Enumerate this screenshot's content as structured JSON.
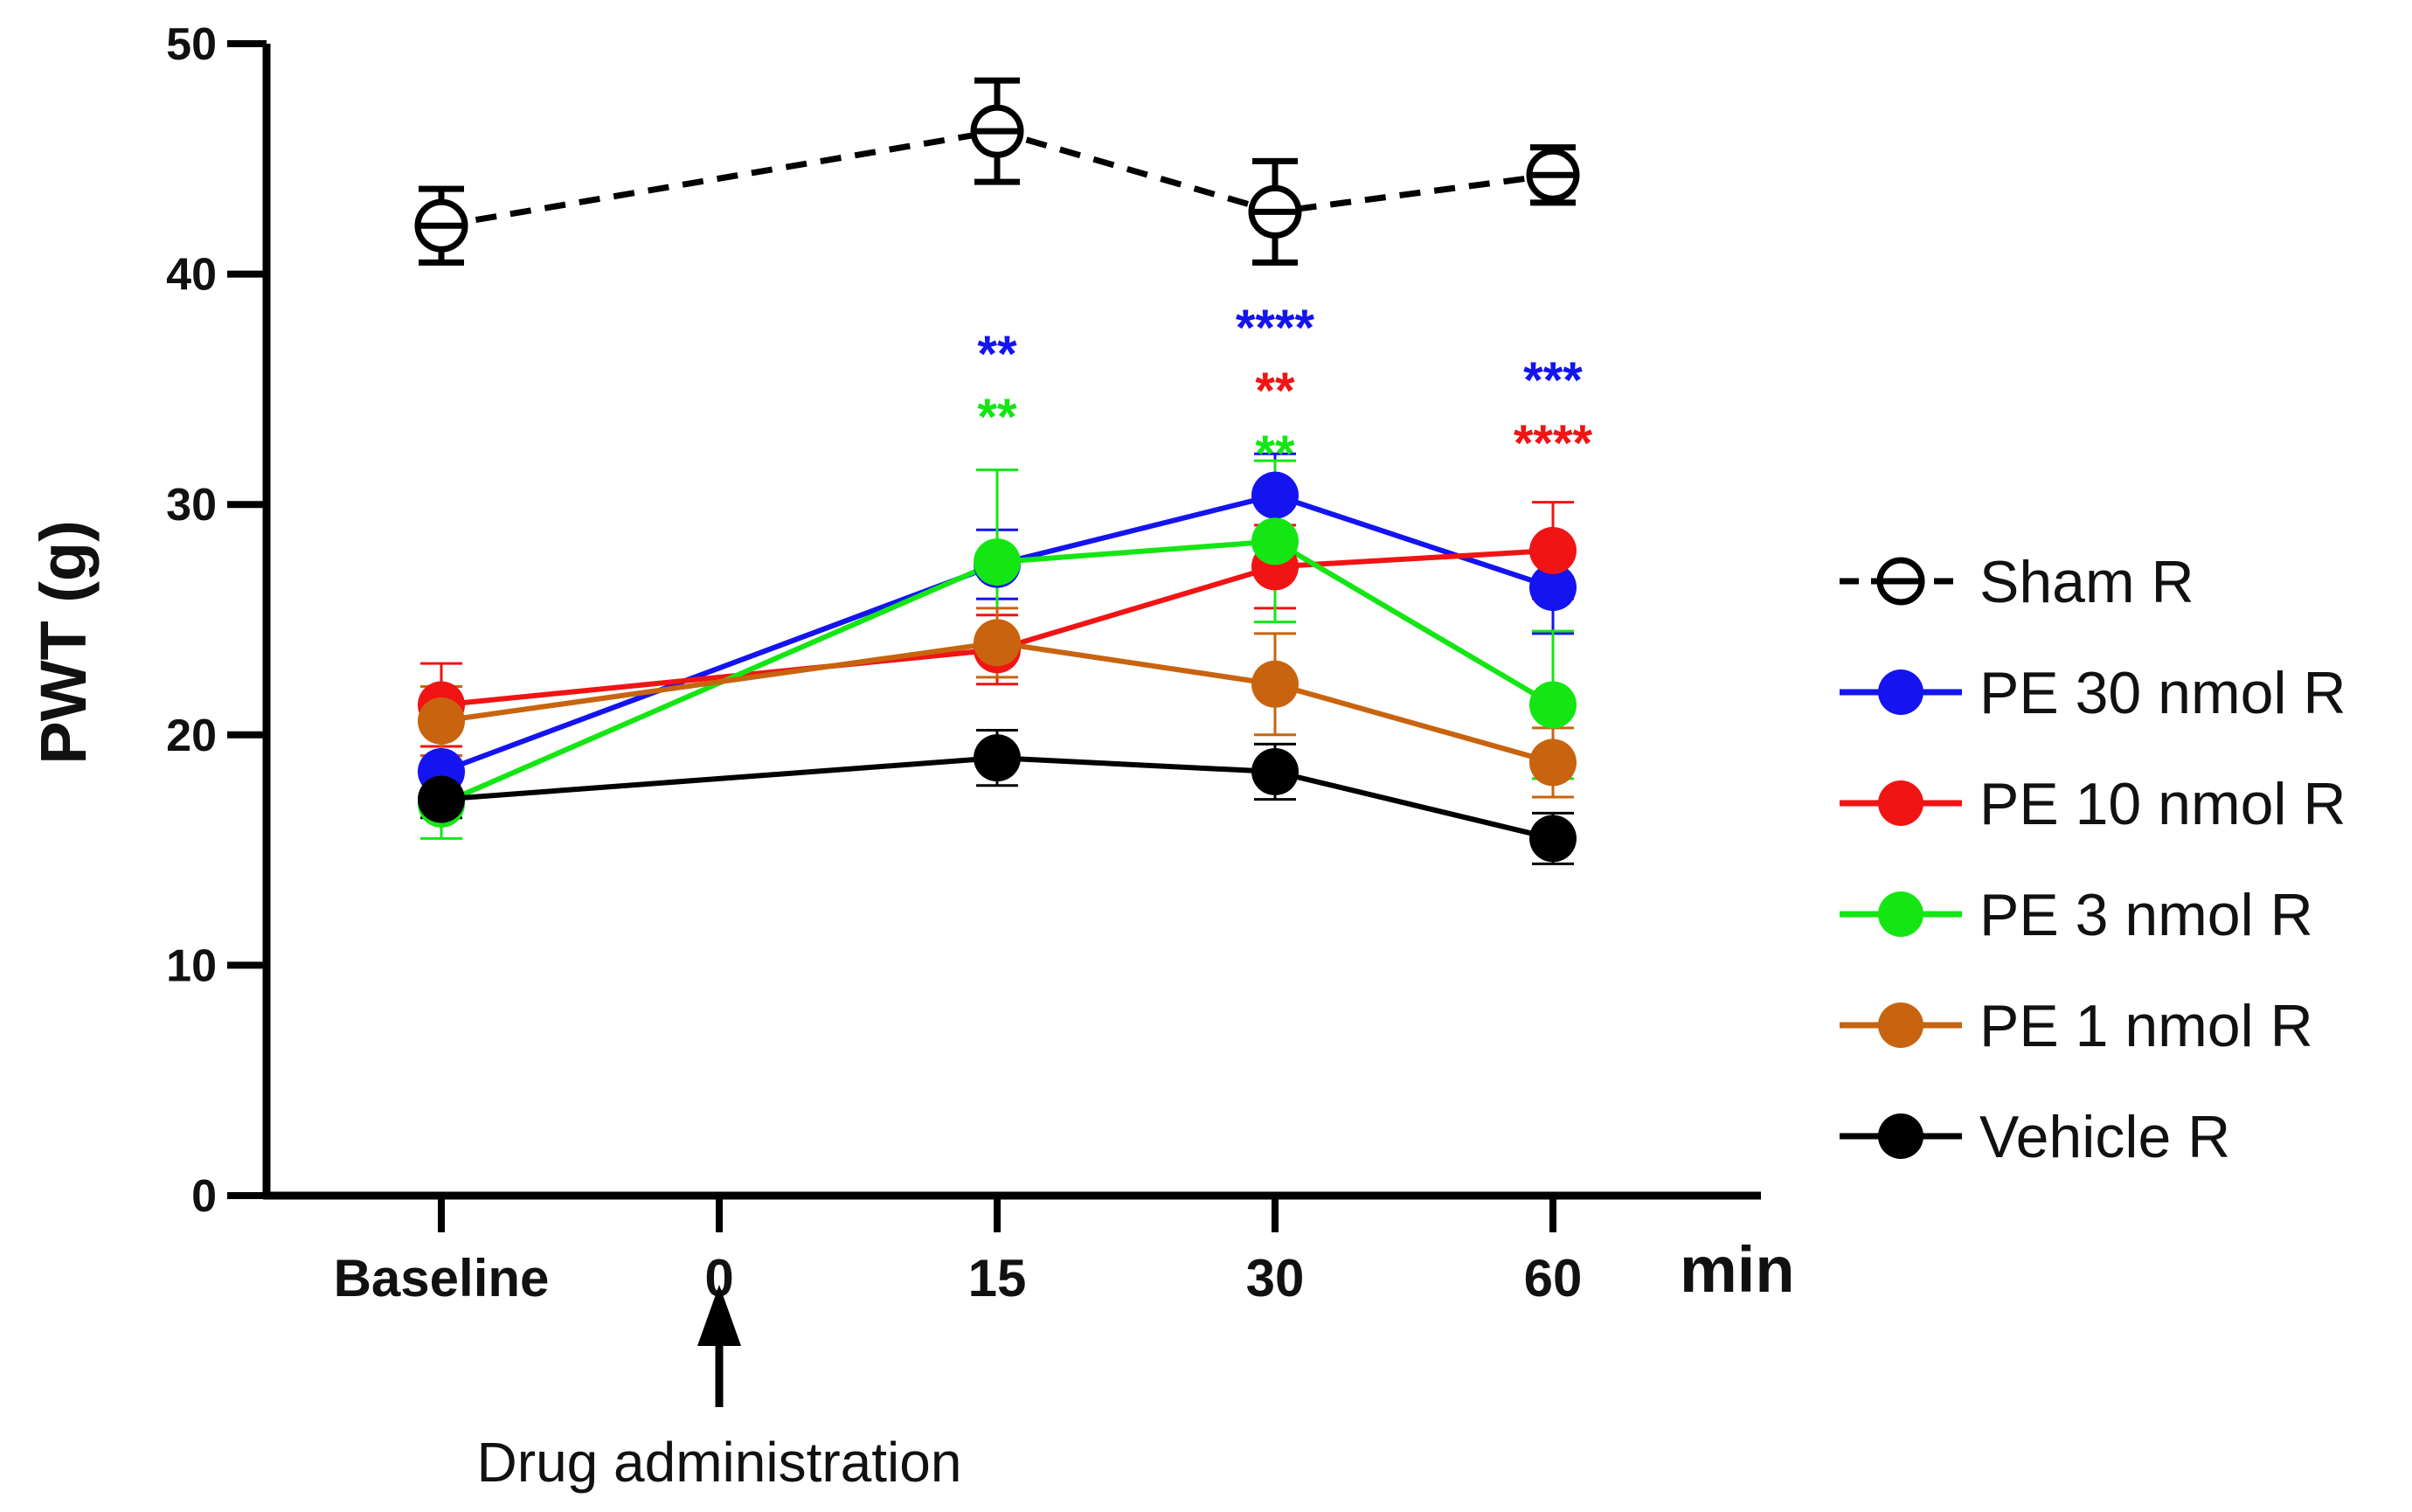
{
  "chart_data": {
    "type": "line",
    "title": "",
    "ylabel": "PWT (g)",
    "xlabel": "min",
    "categories": [
      "Baseline",
      "0",
      "15",
      "30",
      "60"
    ],
    "x_positions": [
      -1,
      0,
      1,
      2,
      3
    ],
    "ylim": [
      0,
      50
    ],
    "yticks": [
      0,
      10,
      20,
      30,
      40,
      50
    ],
    "annotation": "Drug administration",
    "legend_position": "right",
    "series": [
      {
        "name": "Sham R",
        "color": "#000000",
        "marker": "open-circle",
        "dashed": true,
        "x": [
          -1,
          1,
          2,
          3
        ],
        "values": [
          42.1,
          46.2,
          42.7,
          44.3
        ],
        "errors": [
          1.6,
          2.2,
          2.2,
          1.2
        ]
      },
      {
        "name": "PE 30 nmol R",
        "color": "#1414f0",
        "marker": "filled-circle",
        "dashed": false,
        "x": [
          -1,
          1,
          2,
          3
        ],
        "values": [
          18.4,
          27.4,
          30.4,
          26.4
        ],
        "errors": [
          1.8,
          1.5,
          1.8,
          2.0
        ]
      },
      {
        "name": "PE 10 nmol R",
        "color": "#f01414",
        "marker": "filled-circle",
        "dashed": false,
        "x": [
          -1,
          1,
          2,
          3
        ],
        "values": [
          21.3,
          23.7,
          27.3,
          28.0
        ],
        "errors": [
          1.8,
          1.5,
          1.8,
          2.1
        ]
      },
      {
        "name": "PE 3 nmol R",
        "color": "#14e614",
        "marker": "filled-circle",
        "dashed": false,
        "x": [
          -1,
          1,
          2,
          3
        ],
        "values": [
          17.0,
          27.5,
          28.4,
          21.3
        ],
        "errors": [
          1.5,
          4.0,
          3.5,
          3.2
        ]
      },
      {
        "name": "PE 1 nmol R",
        "color": "#c8640f",
        "marker": "filled-circle",
        "dashed": false,
        "x": [
          -1,
          1,
          2,
          3
        ],
        "values": [
          20.6,
          24.0,
          22.2,
          18.8
        ],
        "errors": [
          1.5,
          1.5,
          2.2,
          1.5
        ]
      },
      {
        "name": "Vehicle R",
        "color": "#000000",
        "marker": "filled-circle",
        "dashed": false,
        "x": [
          -1,
          1,
          2,
          3
        ],
        "values": [
          17.2,
          19.0,
          18.4,
          15.5
        ],
        "errors": [
          0.8,
          1.2,
          1.2,
          1.1
        ]
      }
    ],
    "significance": [
      {
        "x": 1,
        "text": "**",
        "color": "#1414f0",
        "level": 0
      },
      {
        "x": 1,
        "text": "**",
        "color": "#14e614",
        "level": 1
      },
      {
        "x": 2,
        "text": "****",
        "color": "#1414f0",
        "level": 0
      },
      {
        "x": 2,
        "text": "**",
        "color": "#f01414",
        "level": 1
      },
      {
        "x": 2,
        "text": "**",
        "color": "#14e614",
        "level": 2
      },
      {
        "x": 3,
        "text": "***",
        "color": "#1414f0",
        "level": 0
      },
      {
        "x": 3,
        "text": "****",
        "color": "#f01414",
        "level": 1
      }
    ]
  }
}
